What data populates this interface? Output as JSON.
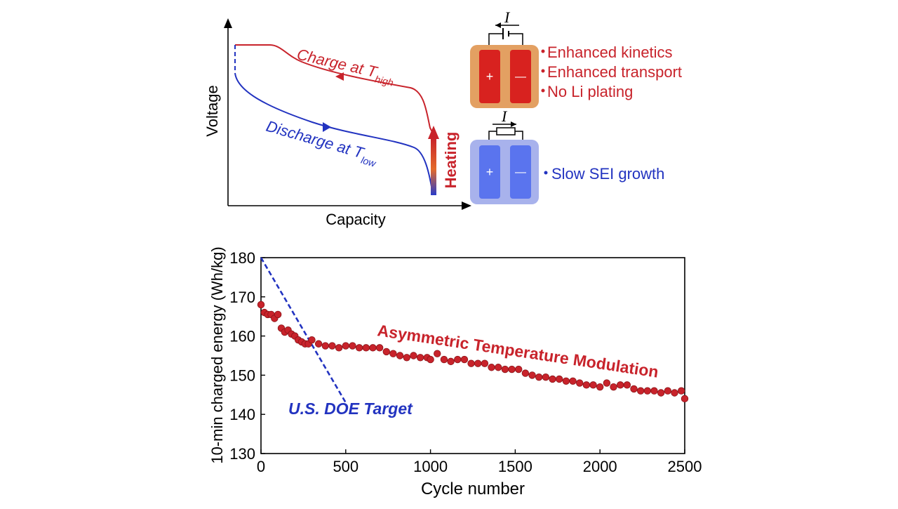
{
  "colors": {
    "red": "#c8232b",
    "blue": "#2233c0",
    "axis": "#000000",
    "cell_hot_bg": "#e3a062",
    "cell_hot_electrode": "#d8221f",
    "cell_cold_bg": "#a8b2ec",
    "cell_cold_electrode": "#5a74ee"
  },
  "schematic": {
    "xlabel": "Capacity",
    "ylabel": "Voltage",
    "charge_label": "Charge  at T",
    "charge_sub": "high",
    "discharge_label": "Discharge at T",
    "discharge_sub": "low",
    "heating_label": "Heating",
    "current_symbol": "I",
    "plus": "+",
    "minus": "—",
    "hot_bullets": [
      "Enhanced kinetics",
      "Enhanced transport",
      "No Li plating"
    ],
    "cold_bullets": [
      "Slow SEI growth"
    ]
  },
  "chart_data": {
    "type": "scatter",
    "xlabel": "Cycle number",
    "ylabel": "10-min charged energy (Wh/kg)",
    "xlim": [
      0,
      2500
    ],
    "ylim": [
      130,
      180
    ],
    "xticks": [
      0,
      500,
      1000,
      1500,
      2000,
      2500
    ],
    "yticks": [
      130,
      140,
      150,
      160,
      170,
      180
    ],
    "grid": false,
    "annotations": [
      "Asymmetric Temperature Modulation",
      "U.S. DOE Target"
    ],
    "series": [
      {
        "name": "Asymmetric Temperature Modulation",
        "kind": "scatter",
        "color": "#c8232b",
        "x": [
          0,
          20,
          40,
          60,
          80,
          100,
          120,
          140,
          160,
          180,
          200,
          220,
          240,
          260,
          280,
          300,
          340,
          380,
          420,
          460,
          500,
          540,
          580,
          620,
          660,
          700,
          740,
          780,
          820,
          860,
          900,
          940,
          980,
          1000,
          1040,
          1080,
          1120,
          1160,
          1200,
          1240,
          1280,
          1320,
          1360,
          1400,
          1440,
          1480,
          1520,
          1560,
          1600,
          1640,
          1680,
          1720,
          1760,
          1800,
          1840,
          1880,
          1920,
          1960,
          2000,
          2040,
          2080,
          2120,
          2160,
          2200,
          2240,
          2280,
          2320,
          2360,
          2400,
          2440,
          2480,
          2500
        ],
        "y": [
          168,
          166,
          165.5,
          165.5,
          164.5,
          165.5,
          162,
          161,
          161.5,
          160.5,
          160,
          159,
          158.5,
          158,
          158,
          159,
          158,
          157.5,
          157.5,
          157,
          157.5,
          157.5,
          157,
          157,
          157,
          157,
          156,
          155.5,
          155,
          154.5,
          155,
          154.5,
          154.5,
          154,
          155.5,
          154,
          153.5,
          154,
          154,
          153,
          153,
          153,
          152,
          152,
          151.5,
          151.5,
          151.5,
          150.5,
          150,
          149.5,
          149.5,
          149,
          149,
          148.5,
          148.5,
          148,
          147.5,
          147.5,
          147,
          148,
          147,
          147.5,
          147.5,
          146.5,
          146,
          146,
          146,
          145.5,
          146,
          145.5,
          146,
          144
        ]
      },
      {
        "name": "U.S. DOE Target",
        "kind": "line",
        "style": "dashed",
        "color": "#2233c0",
        "x": [
          0,
          500
        ],
        "y": [
          180,
          143
        ]
      }
    ]
  }
}
